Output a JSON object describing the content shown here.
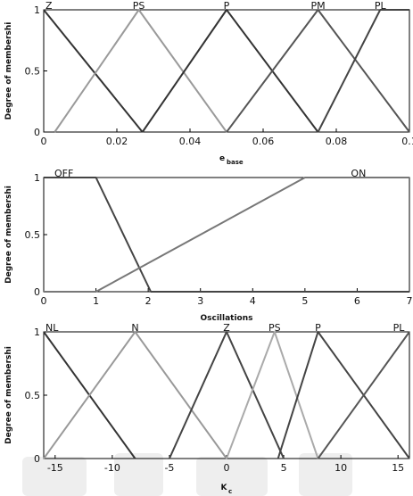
{
  "figure": {
    "charts": [
      {
        "ylabel": "Degree of membershi",
        "xlabel": "e",
        "xlabel_sub": "base",
        "xticks": [
          "0",
          "0.02",
          "0.04",
          "0.06",
          "0.08",
          "0.1"
        ],
        "yticks": [
          "0",
          "0.5",
          "1"
        ]
      },
      {
        "ylabel": "Degree of membershi",
        "xlabel": "Oscillations",
        "xlabel_sub": "",
        "xticks": [
          "0",
          "1",
          "2",
          "3",
          "4",
          "5",
          "6",
          "7"
        ],
        "yticks": [
          "0",
          "0.5",
          "1"
        ]
      },
      {
        "ylabel": "Degree of membershi",
        "xlabel": "K",
        "xlabel_sub": "c",
        "xticks": [
          "-15",
          "-10",
          "-5",
          "0",
          "5",
          "10",
          "15"
        ],
        "yticks": [
          "0",
          "0.5",
          "1"
        ]
      }
    ]
  },
  "chart_data": [
    {
      "type": "line",
      "xlabel": "e_base",
      "ylabel": "Degree of membershi",
      "xlim": [
        0,
        0.1
      ],
      "ylim": [
        0,
        1
      ],
      "grid": false,
      "series": [
        {
          "name": "Z",
          "color": "#333333",
          "x": [
            0,
            0.027
          ],
          "y": [
            1,
            0
          ]
        },
        {
          "name": "PS",
          "color": "#9a9a9a",
          "x": [
            0.003,
            0.026,
            0.05
          ],
          "y": [
            0,
            1,
            0
          ]
        },
        {
          "name": "P",
          "color": "#333333",
          "x": [
            0.027,
            0.05,
            0.075
          ],
          "y": [
            0,
            1,
            0
          ]
        },
        {
          "name": "PM",
          "color": "#555555",
          "x": [
            0.05,
            0.075,
            0.1
          ],
          "y": [
            0,
            1,
            0
          ]
        },
        {
          "name": "PL",
          "color": "#444444",
          "x": [
            0.075,
            0.092,
            0.1
          ],
          "y": [
            0,
            1,
            1
          ]
        }
      ]
    },
    {
      "type": "line",
      "xlabel": "Oscillations",
      "ylabel": "Degree of membershi",
      "xlim": [
        0,
        7
      ],
      "ylim": [
        0,
        1
      ],
      "grid": false,
      "series": [
        {
          "name": "OFF",
          "color": "#444444",
          "x": [
            0,
            1,
            2.05,
            7
          ],
          "y": [
            1,
            1,
            0,
            0
          ]
        },
        {
          "name": "ON",
          "color": "#777777",
          "x": [
            0,
            1,
            5,
            7
          ],
          "y": [
            0,
            0,
            1,
            1
          ]
        }
      ]
    },
    {
      "type": "line",
      "xlabel": "K_c",
      "ylabel": "Degree of membershi",
      "xlim": [
        -16,
        16
      ],
      "ylim": [
        0,
        1
      ],
      "grid": false,
      "series": [
        {
          "name": "NL",
          "color": "#333333",
          "x": [
            -16,
            -8
          ],
          "y": [
            1,
            0
          ]
        },
        {
          "name": "N",
          "color": "#999999",
          "x": [
            -16,
            -8,
            0
          ],
          "y": [
            0,
            1,
            0
          ]
        },
        {
          "name": "Z",
          "color": "#444444",
          "x": [
            -5,
            0,
            5
          ],
          "y": [
            0,
            1,
            0
          ]
        },
        {
          "name": "PS",
          "color": "#aaaaaa",
          "x": [
            0,
            4.2,
            8
          ],
          "y": [
            0,
            1,
            0
          ]
        },
        {
          "name": "P",
          "color": "#444444",
          "x": [
            4.5,
            8,
            16
          ],
          "y": [
            0,
            1,
            0
          ]
        },
        {
          "name": "PL",
          "color": "#555555",
          "x": [
            8,
            16
          ],
          "y": [
            0,
            1
          ]
        }
      ]
    }
  ]
}
